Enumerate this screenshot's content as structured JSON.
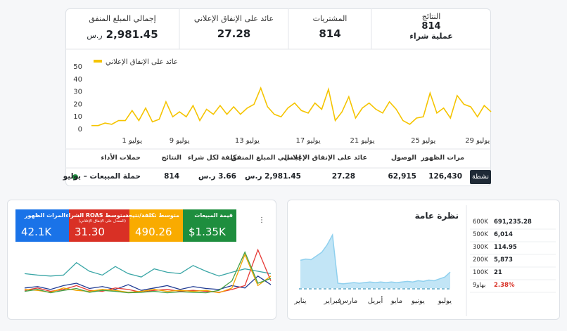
{
  "kpis": [
    {
      "label": "النتائج",
      "value": 814,
      "sub": "عملية شراء"
    },
    {
      "label": "المشتريات",
      "value": 814
    },
    {
      "label": "عائد على الإنفاق الإعلاني",
      "value": 27.28
    },
    {
      "label": "إجمالي المبلغ المنفق",
      "value": "2,981.45",
      "unit": "ر.س"
    }
  ],
  "table": {
    "headers": [
      "حملات الأداء",
      "النتائج",
      "تكلفة لكل شراء",
      "إجمالي المبلغ المنفق",
      "عائد على الإنفاق الإعلاني",
      "الوصول",
      "مرات الظهور"
    ],
    "rows": [
      [
        "حملة المبيعات – يوليو",
        "814",
        "3.66 ر.س",
        "2,981.45 ر.س",
        "27.28",
        "62,915",
        "126,430"
      ]
    ],
    "status": "نشطة"
  },
  "tiles": [
    {
      "label": "المرات الظهور",
      "value": "42.1K",
      "color": "#1a73e8"
    },
    {
      "label": "متوسط ROAS الشراء",
      "note": "(المعدل على الإنفاق الإعلاني)",
      "value": "31.30",
      "color": "#d93025"
    },
    {
      "label": "متوسط تكلفة/نتيجة",
      "value": "490.26",
      "color": "#f9ab00"
    },
    {
      "label": "قيمة المبيعات",
      "value": "$1.35K",
      "color": "#1e8e3e"
    }
  ],
  "overview_list": [
    [
      "600K",
      "691,235.28"
    ],
    [
      "500K",
      "6,014"
    ],
    [
      "300K",
      "114.95"
    ],
    [
      "200K",
      "5,873"
    ],
    [
      "100K",
      "21"
    ],
    [
      "بهاو9",
      "2.38%"
    ]
  ],
  "chart_data": [
    {
      "type": "line",
      "categories": [
        null,
        null,
        null,
        null,
        null,
        null,
        "1 يوليو",
        null,
        null,
        null,
        null,
        null,
        null,
        "9 يوليو",
        null,
        null,
        null,
        null,
        null,
        null,
        null,
        null,
        null,
        "13 يوليو",
        null,
        null,
        null,
        null,
        null,
        null,
        null,
        null,
        "17 يوليو",
        null,
        null,
        null,
        null,
        null,
        null,
        null,
        "21 يوليو",
        null,
        null,
        null,
        null,
        null,
        null,
        null,
        null,
        "25 يوليو",
        null,
        null,
        null,
        null,
        null,
        null,
        null,
        "29 يوليو",
        null,
        null
      ],
      "series": [
        {
          "name": "عائد على الإنفاق الإعلاني",
          "color": "#f5c400",
          "values": [
            3,
            3,
            5,
            4,
            7,
            7,
            15,
            7,
            17,
            6,
            8,
            22,
            10,
            14,
            10,
            19,
            7,
            16,
            12,
            19,
            12,
            18,
            12,
            17,
            20,
            33,
            18,
            12,
            10,
            17,
            21,
            15,
            13,
            21,
            16,
            32,
            7,
            14,
            26,
            9,
            17,
            21,
            16,
            13,
            22,
            16,
            7,
            4,
            9,
            10,
            29,
            13,
            17,
            9,
            27,
            20,
            18,
            10,
            19,
            14
          ]
        }
      ],
      "ylim": [
        0,
        50
      ],
      "yticks": [
        0,
        10,
        20,
        30,
        40,
        50
      ],
      "legend": "top-left"
    },
    {
      "type": "line",
      "series": [
        {
          "color": "#3aa6a6",
          "values": [
            45,
            42,
            40,
            42,
            68,
            50,
            42,
            60,
            45,
            38,
            55,
            48,
            45,
            62,
            50,
            40,
            48,
            55,
            50,
            45
          ]
        },
        {
          "color": "#1f3a93",
          "values": [
            15,
            18,
            12,
            20,
            25,
            14,
            18,
            12,
            22,
            10,
            15,
            20,
            12,
            18,
            14,
            12,
            20,
            15,
            40,
            22
          ]
        },
        {
          "color": "#e53935",
          "values": [
            10,
            15,
            8,
            12,
            20,
            10,
            8,
            15,
            12,
            6,
            10,
            12,
            8,
            10,
            8,
            6,
            12,
            20,
            95,
            30
          ]
        },
        {
          "color": "#f4a300",
          "values": [
            12,
            10,
            6,
            15,
            10,
            8,
            12,
            10,
            6,
            8,
            12,
            8,
            10,
            8,
            10,
            5,
            15,
            85,
            20,
            40
          ]
        },
        {
          "color": "#43a047",
          "values": [
            8,
            12,
            5,
            10,
            14,
            6,
            10,
            8,
            5,
            6,
            8,
            5,
            7,
            6,
            5,
            10,
            30,
            90,
            25,
            35
          ]
        }
      ],
      "ylim": [
        0,
        100
      ]
    },
    {
      "type": "area",
      "title": "نظرة عامة",
      "categories": [
        "يناير",
        null,
        null,
        null,
        null,
        null,
        "فبراير",
        null,
        null,
        "مارس",
        null,
        null,
        null,
        null,
        "أبريل",
        null,
        null,
        null,
        "مايو",
        null,
        null,
        null,
        "يونيو",
        null,
        null,
        null,
        null,
        "يوليو",
        null
      ],
      "values": [
        45,
        47,
        46,
        52,
        58,
        70,
        86,
        8,
        7,
        8,
        9,
        8,
        9,
        10,
        9,
        10,
        9,
        10,
        9,
        10,
        11,
        10,
        12,
        11,
        13,
        12,
        15,
        18,
        26
      ],
      "color": "#8fd0ee",
      "ylim": [
        0,
        100
      ]
    }
  ]
}
